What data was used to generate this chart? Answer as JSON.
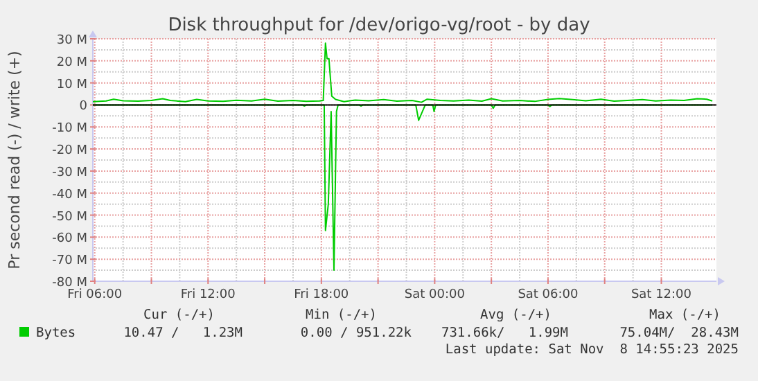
{
  "chart_data": {
    "type": "line",
    "title": "Disk throughput for /dev/origo-vg/root - by day",
    "ylabel": "Pr second read (-) / write (+)",
    "xlim": [
      "2025-11-07T05:54",
      "2025-11-08T14:55"
    ],
    "xticks": [
      {
        "value": "2025-11-07T06:00",
        "label": "Fri 06:00"
      },
      {
        "value": "2025-11-07T09:00",
        "label": null
      },
      {
        "value": "2025-11-07T12:00",
        "label": "Fri 12:00"
      },
      {
        "value": "2025-11-07T15:00",
        "label": null
      },
      {
        "value": "2025-11-07T18:00",
        "label": "Fri 18:00"
      },
      {
        "value": "2025-11-07T21:00",
        "label": null
      },
      {
        "value": "2025-11-08T00:00",
        "label": "Sat 00:00"
      },
      {
        "value": "2025-11-08T03:00",
        "label": null
      },
      {
        "value": "2025-11-08T06:00",
        "label": "Sat 06:00"
      },
      {
        "value": "2025-11-08T09:00",
        "label": null
      },
      {
        "value": "2025-11-08T12:00",
        "label": "Sat 12:00"
      }
    ],
    "ylim": [
      -80,
      30
    ],
    "yticks": [
      {
        "value": 30,
        "label": "30 M"
      },
      {
        "value": 20,
        "label": "20 M"
      },
      {
        "value": 10,
        "label": "10 M"
      },
      0,
      {
        "value": -10,
        "label": "-10 M"
      },
      {
        "value": -20,
        "label": "-20 M"
      },
      {
        "value": -30,
        "label": "-30 M"
      },
      {
        "value": -40,
        "label": "-40 M"
      },
      {
        "value": -50,
        "label": "-50 M"
      },
      {
        "value": -60,
        "label": "-60 M"
      },
      {
        "value": -70,
        "label": "-70 M"
      },
      {
        "value": -80,
        "label": "-80 M"
      }
    ],
    "grid": true,
    "legend": "bottom left",
    "ref_lines": [
      {
        "axis": "y",
        "value": 0,
        "color": "#000000"
      }
    ],
    "series": [
      {
        "name": "Bytes",
        "color": "#00cc00",
        "x": [
          "2025-11-07T05:54",
          "2025-11-07T06:36",
          "2025-11-07T07:00",
          "2025-11-07T07:30",
          "2025-11-07T08:18",
          "2025-11-07T09:00",
          "2025-11-07T09:36",
          "2025-11-07T10:00",
          "2025-11-07T10:48",
          "2025-11-07T11:24",
          "2025-11-07T12:00",
          "2025-11-07T12:48",
          "2025-11-07T13:30",
          "2025-11-07T14:18",
          "2025-11-07T15:00",
          "2025-11-07T15:42",
          "2025-11-07T16:30",
          "2025-11-07T17:12",
          "2025-11-07T17:54",
          "2025-11-07T18:06",
          "2025-11-07T18:13",
          "2025-11-07T18:18",
          "2025-11-07T18:24",
          "2025-11-07T18:33",
          "2025-11-07T18:45",
          "2025-11-07T19:12",
          "2025-11-07T19:48",
          "2025-11-07T20:30",
          "2025-11-07T21:18",
          "2025-11-07T22:00",
          "2025-11-07T22:48",
          "2025-11-07T23:18",
          "2025-11-07T23:36",
          "2025-11-08T00:18",
          "2025-11-08T01:00",
          "2025-11-08T01:48",
          "2025-11-08T02:30",
          "2025-11-08T03:00",
          "2025-11-08T03:36",
          "2025-11-08T04:30",
          "2025-11-08T05:18",
          "2025-11-08T06:00",
          "2025-11-08T06:36",
          "2025-11-08T07:18",
          "2025-11-08T08:00",
          "2025-11-08T08:48",
          "2025-11-08T09:30",
          "2025-11-08T10:12",
          "2025-11-08T11:00",
          "2025-11-08T11:42",
          "2025-11-08T12:30",
          "2025-11-08T13:12",
          "2025-11-08T13:54",
          "2025-11-08T14:24",
          "2025-11-08T14:42"
        ],
        "values": [
          1.5,
          1.8,
          2.6,
          1.9,
          1.7,
          2.0,
          2.8,
          2.0,
          1.5,
          2.5,
          1.8,
          1.6,
          2.1,
          1.8,
          2.6,
          1.7,
          2.0,
          1.6,
          1.8,
          2.0,
          28,
          21,
          21,
          4,
          2.5,
          1.5,
          2.2,
          1.9,
          2.4,
          1.7,
          2.0,
          1.2,
          2.6,
          2.0,
          1.8,
          2.2,
          1.7,
          2.8,
          1.8,
          2.0,
          1.6,
          2.5,
          2.9,
          2.4,
          1.9,
          2.6,
          1.7,
          2.0,
          2.4,
          1.8,
          2.2,
          2.0,
          2.8,
          2.6,
          1.8
        ]
      },
      {
        "color": "#00cc00",
        "x": [
          "2025-11-07T05:54",
          "2025-11-07T17:00",
          "2025-11-07T17:06",
          "2025-11-07T17:12",
          "2025-11-07T18:09",
          "2025-11-07T18:13",
          "2025-11-07T18:22",
          "2025-11-07T18:31",
          "2025-11-07T18:40",
          "2025-11-07T18:48",
          "2025-11-07T18:53",
          "2025-11-07T20:00",
          "2025-11-07T20:06",
          "2025-11-07T20:12",
          "2025-11-07T23:00",
          "2025-11-07T23:09",
          "2025-11-07T23:18",
          "2025-11-07T23:30",
          "2025-11-07T23:54",
          "2025-11-07T23:58",
          "2025-11-08T00:03",
          "2025-11-08T03:00",
          "2025-11-08T03:06",
          "2025-11-08T03:12",
          "2025-11-08T06:00",
          "2025-11-08T06:06",
          "2025-11-08T06:12",
          "2025-11-08T14:42"
        ],
        "values": [
          0,
          0,
          -0.5,
          0,
          0,
          -57,
          -45,
          -3,
          -75,
          -3,
          0,
          0,
          -0.5,
          0,
          0,
          -7,
          -4,
          0,
          0,
          -3,
          0,
          0,
          -1.5,
          0,
          0,
          -0.7,
          0,
          0
        ]
      }
    ],
    "annotations": [
      "Cur (-/+)",
      "Min (-/+)",
      "Avg (-/+)",
      "Max (-/+)",
      "10.47 /   1.23M",
      "0.00 / 951.22k",
      "731.66k/   1.99M",
      "75.04M/  28.43M",
      "Last update: Sat Nov  8 14:55:23 2025"
    ]
  }
}
